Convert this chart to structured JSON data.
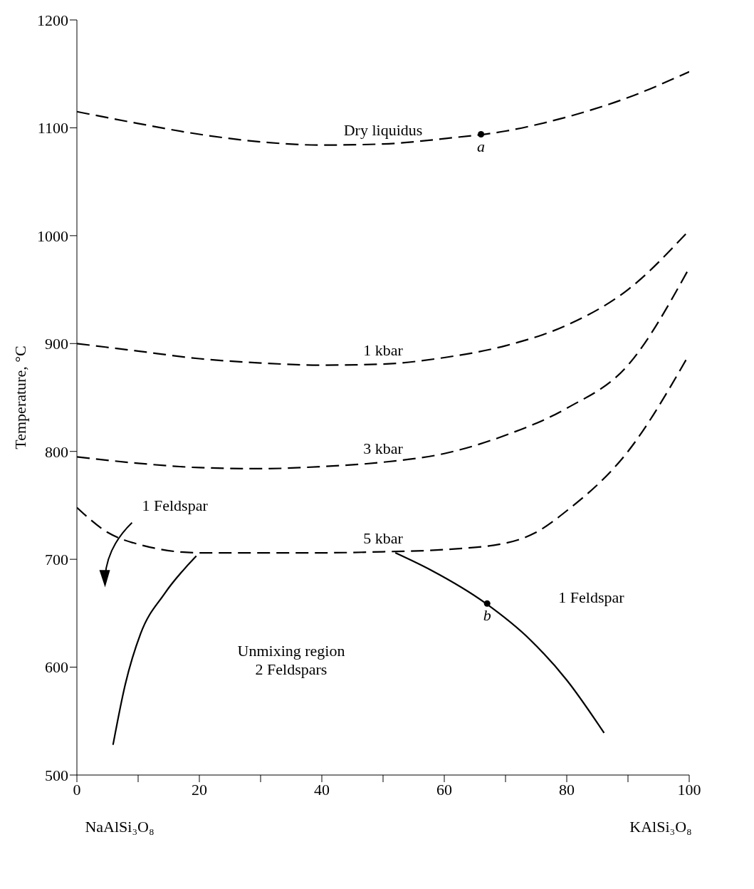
{
  "chart_data": {
    "type": "line",
    "ylabel": "Temperature, °C",
    "xlim": [
      0,
      100
    ],
    "xticks": [
      0,
      {
        "value": 10,
        "label": null
      },
      20,
      {
        "value": 30,
        "label": null
      },
      40,
      {
        "value": 50,
        "label": null
      },
      60,
      {
        "value": 70,
        "label": null
      },
      80,
      {
        "value": 90,
        "label": null
      },
      100
    ],
    "ylim": [
      500,
      1200
    ],
    "yticks": [
      500,
      600,
      700,
      800,
      900,
      1000,
      1100,
      1200
    ],
    "grid": false,
    "legend": false,
    "series": [
      {
        "name": "Dry liquidus",
        "color": "#000000",
        "line_style": "dashed",
        "x": [
          0,
          10,
          20,
          30,
          40,
          50,
          60,
          70,
          80,
          90,
          100
        ],
        "values": [
          1115,
          1104,
          1094,
          1087,
          1084,
          1085,
          1090,
          1097,
          1110,
          1128,
          1152
        ]
      },
      {
        "name": "1 kbar",
        "color": "#000000",
        "line_style": "dashed",
        "x": [
          0,
          10,
          20,
          30,
          40,
          50,
          60,
          70,
          80,
          90,
          100
        ],
        "values": [
          900,
          893,
          886,
          882,
          880,
          881,
          887,
          898,
          917,
          950,
          1005
        ]
      },
      {
        "name": "3 kbar",
        "color": "#000000",
        "line_style": "dashed",
        "x": [
          0,
          10,
          20,
          30,
          40,
          50,
          60,
          70,
          80,
          90,
          100
        ],
        "values": [
          795,
          789,
          785,
          784,
          786,
          790,
          798,
          815,
          840,
          880,
          970
        ]
      },
      {
        "name": "5 kbar",
        "color": "#000000",
        "line_style": "dashed",
        "x": [
          0,
          5,
          10,
          20,
          30,
          40,
          50,
          60,
          70,
          75,
          80,
          90,
          100
        ],
        "values": [
          748,
          725,
          714,
          706,
          706,
          706,
          707,
          709,
          715,
          725,
          745,
          800,
          890
        ]
      },
      {
        "color": "#000000",
        "line_style": "solid",
        "x": [
          5.9,
          7.9,
          10.4,
          14.3,
          19.5
        ],
        "values": [
          528,
          584,
          631,
          668,
          703
        ]
      },
      {
        "color": "#000000",
        "line_style": "solid",
        "x": [
          52,
          57.8,
          66.8,
          74.1,
          80,
          86.1
        ],
        "values": [
          706,
          690,
          659,
          625,
          588,
          539
        ]
      },
      {
        "type": "scatter",
        "color": "#000000",
        "marker": "circle",
        "x": [
          66,
          67
        ],
        "values": [
          1094,
          659
        ]
      }
    ],
    "annotations": [
      {
        "text": "a",
        "x": 66,
        "y": 1094
      },
      {
        "text": "b",
        "x": 67,
        "y": 659
      },
      "1 Feldspar",
      "1 Feldspar",
      "Unmixing region\n2 Feldspars",
      "NaAlSi₃O₈",
      "KAlSi₃O₈"
    ]
  }
}
